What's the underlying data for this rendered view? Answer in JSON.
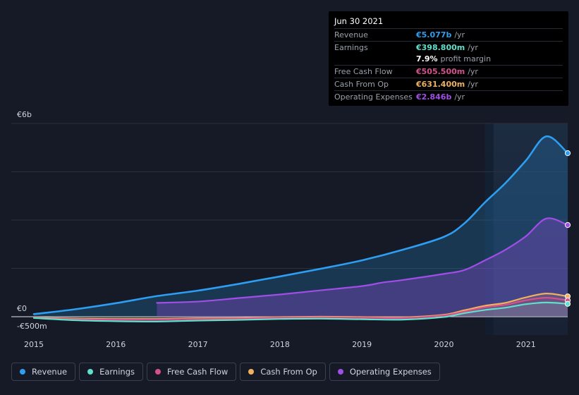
{
  "tooltip": {
    "date": "Jun 30 2021",
    "rows": [
      {
        "label": "Revenue",
        "value": "€5.077b",
        "unit": "/yr",
        "color": "#2d9ef2"
      },
      {
        "label": "Earnings",
        "value": "€398.800m",
        "unit": "/yr",
        "color": "#5fe0cc"
      },
      {
        "label": "",
        "value": "7.9%",
        "unit": "profit margin",
        "color": "#ffffff"
      },
      {
        "label": "Free Cash Flow",
        "value": "€505.500m",
        "unit": "/yr",
        "color": "#d6518c"
      },
      {
        "label": "Cash From Op",
        "value": "€631.400m",
        "unit": "/yr",
        "color": "#f0b060"
      },
      {
        "label": "Operating Expenses",
        "value": "€2.846b",
        "unit": "/yr",
        "color": "#a14ee8"
      }
    ]
  },
  "legend": [
    {
      "label": "Revenue",
      "color": "#2d9ef2"
    },
    {
      "label": "Earnings",
      "color": "#5fe0cc"
    },
    {
      "label": "Free Cash Flow",
      "color": "#d6518c"
    },
    {
      "label": "Cash From Op",
      "color": "#f0b060"
    },
    {
      "label": "Operating Expenses",
      "color": "#a14ee8"
    }
  ],
  "chart_data": {
    "type": "line",
    "y_tick_labels": [
      "€6b",
      "€0",
      "-€500m"
    ],
    "x_tick_labels": [
      "2015",
      "2016",
      "2017",
      "2018",
      "2019",
      "2020",
      "2021"
    ],
    "ylim": [
      -500,
      6000
    ],
    "xlim": [
      2014.75,
      2021.5
    ],
    "highlight_from": 2020.5,
    "series": [
      {
        "name": "Revenue",
        "color": "#2d9ef2",
        "points": [
          [
            2015.0,
            80
          ],
          [
            2015.5,
            230
          ],
          [
            2016.0,
            420
          ],
          [
            2016.5,
            640
          ],
          [
            2017.0,
            810
          ],
          [
            2017.5,
            1020
          ],
          [
            2018.0,
            1250
          ],
          [
            2018.5,
            1490
          ],
          [
            2019.0,
            1750
          ],
          [
            2019.5,
            2080
          ],
          [
            2020.0,
            2480
          ],
          [
            2020.25,
            2900
          ],
          [
            2020.5,
            3550
          ],
          [
            2020.75,
            4150
          ],
          [
            2021.0,
            4850
          ],
          [
            2021.25,
            5600
          ],
          [
            2021.5,
            5077
          ]
        ]
      },
      {
        "name": "Operating Expenses",
        "color": "#a14ee8",
        "points": [
          [
            2016.5,
            430
          ],
          [
            2017.0,
            470
          ],
          [
            2017.5,
            580
          ],
          [
            2018.0,
            690
          ],
          [
            2018.5,
            820
          ],
          [
            2019.0,
            950
          ],
          [
            2019.25,
            1060
          ],
          [
            2019.5,
            1140
          ],
          [
            2020.0,
            1330
          ],
          [
            2020.25,
            1450
          ],
          [
            2020.5,
            1750
          ],
          [
            2020.75,
            2080
          ],
          [
            2021.0,
            2500
          ],
          [
            2021.25,
            3050
          ],
          [
            2021.5,
            2846
          ]
        ]
      },
      {
        "name": "Cash From Op",
        "color": "#f0b060",
        "points": [
          [
            2015.0,
            -20
          ],
          [
            2015.5,
            -60
          ],
          [
            2016.0,
            -70
          ],
          [
            2016.5,
            -70
          ],
          [
            2017.0,
            -50
          ],
          [
            2017.5,
            -40
          ],
          [
            2018.0,
            -10
          ],
          [
            2018.5,
            0
          ],
          [
            2019.0,
            -10
          ],
          [
            2019.5,
            -20
          ],
          [
            2020.0,
            60
          ],
          [
            2020.25,
            200
          ],
          [
            2020.5,
            340
          ],
          [
            2020.75,
            430
          ],
          [
            2021.0,
            600
          ],
          [
            2021.25,
            720
          ],
          [
            2021.5,
            631.4
          ]
        ]
      },
      {
        "name": "Free Cash Flow",
        "color": "#d6518c",
        "points": [
          [
            2015.0,
            -30
          ],
          [
            2015.5,
            -80
          ],
          [
            2016.0,
            -90
          ],
          [
            2016.5,
            -90
          ],
          [
            2017.0,
            -70
          ],
          [
            2017.5,
            -60
          ],
          [
            2018.0,
            -30
          ],
          [
            2018.5,
            -20
          ],
          [
            2019.0,
            -30
          ],
          [
            2019.5,
            -40
          ],
          [
            2020.0,
            40
          ],
          [
            2020.25,
            160
          ],
          [
            2020.5,
            290
          ],
          [
            2020.75,
            370
          ],
          [
            2021.0,
            510
          ],
          [
            2021.25,
            590
          ],
          [
            2021.5,
            505.5
          ]
        ]
      },
      {
        "name": "Earnings",
        "color": "#5fe0cc",
        "points": [
          [
            2015.0,
            -40
          ],
          [
            2015.5,
            -110
          ],
          [
            2016.0,
            -140
          ],
          [
            2016.5,
            -150
          ],
          [
            2017.0,
            -120
          ],
          [
            2017.5,
            -100
          ],
          [
            2018.0,
            -70
          ],
          [
            2018.5,
            -60
          ],
          [
            2019.0,
            -80
          ],
          [
            2019.5,
            -90
          ],
          [
            2020.0,
            -10
          ],
          [
            2020.25,
            110
          ],
          [
            2020.5,
            210
          ],
          [
            2020.75,
            280
          ],
          [
            2021.0,
            390
          ],
          [
            2021.25,
            440
          ],
          [
            2021.5,
            398.8
          ]
        ]
      }
    ]
  }
}
